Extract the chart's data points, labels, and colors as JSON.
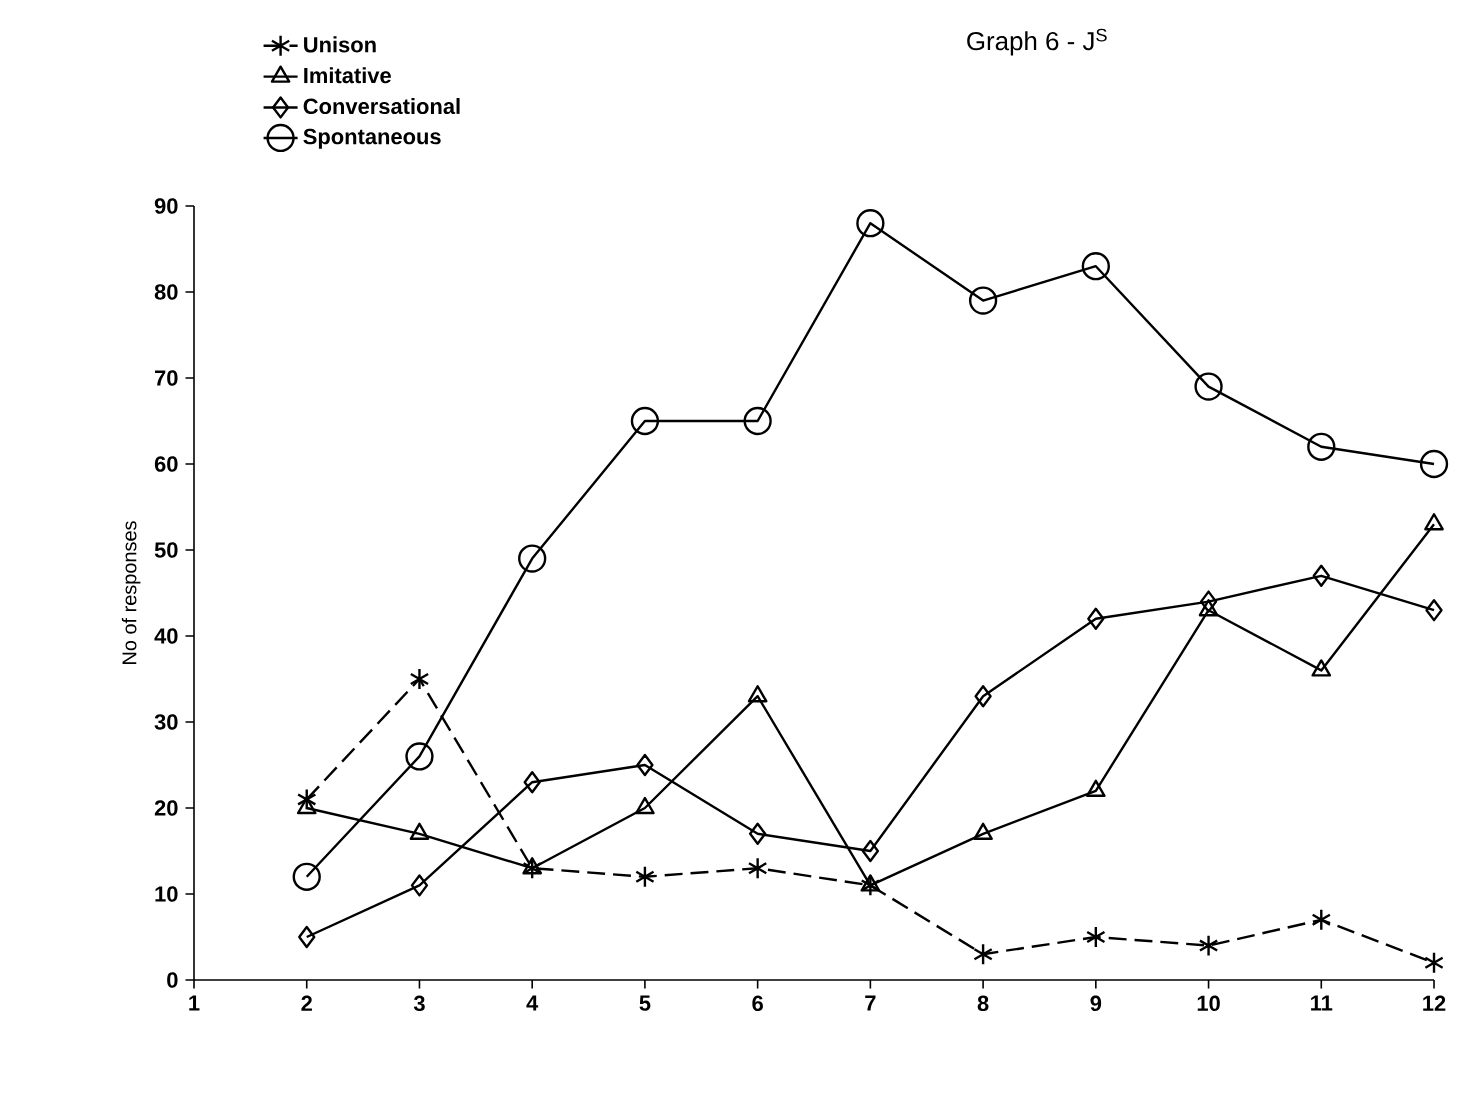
{
  "chart_data": {
    "type": "line",
    "title": "Graph 6 - J$^{S}$",
    "ylabel": "No of responses",
    "x": [
      2,
      3,
      4,
      5,
      6,
      7,
      8,
      9,
      10,
      11,
      12
    ],
    "xlim": [
      1,
      12
    ],
    "xticks": [
      1,
      2,
      3,
      4,
      5,
      6,
      7,
      8,
      9,
      10,
      11,
      12
    ],
    "ylim": [
      0,
      90
    ],
    "yticks": [
      0,
      10,
      20,
      30,
      40,
      50,
      60,
      70,
      80,
      90
    ],
    "grid": false,
    "legend": "top left",
    "series": [
      {
        "name": "Unison",
        "color": "#000000",
        "marker": "cross",
        "line_style": "dashed",
        "values": [
          21,
          35,
          13,
          12,
          13,
          11,
          3,
          5,
          4,
          7,
          2
        ]
      },
      {
        "name": "Imitative",
        "color": "#000000",
        "marker": "triangle",
        "line_style": "solid",
        "values": [
          20,
          17,
          13,
          20,
          33,
          11,
          17,
          22,
          43,
          36,
          53
        ]
      },
      {
        "name": "Conversational",
        "color": "#000000",
        "marker": "diamond",
        "line_style": "solid",
        "values": [
          5,
          11,
          23,
          25,
          17,
          15,
          33,
          42,
          44,
          47,
          43
        ]
      },
      {
        "name": "Spontaneous",
        "color": "#000000",
        "marker": "circle",
        "line_style": "solid",
        "values": [
          12,
          26,
          49,
          65,
          65,
          88,
          79,
          83,
          69,
          62,
          60
        ]
      }
    ]
  }
}
